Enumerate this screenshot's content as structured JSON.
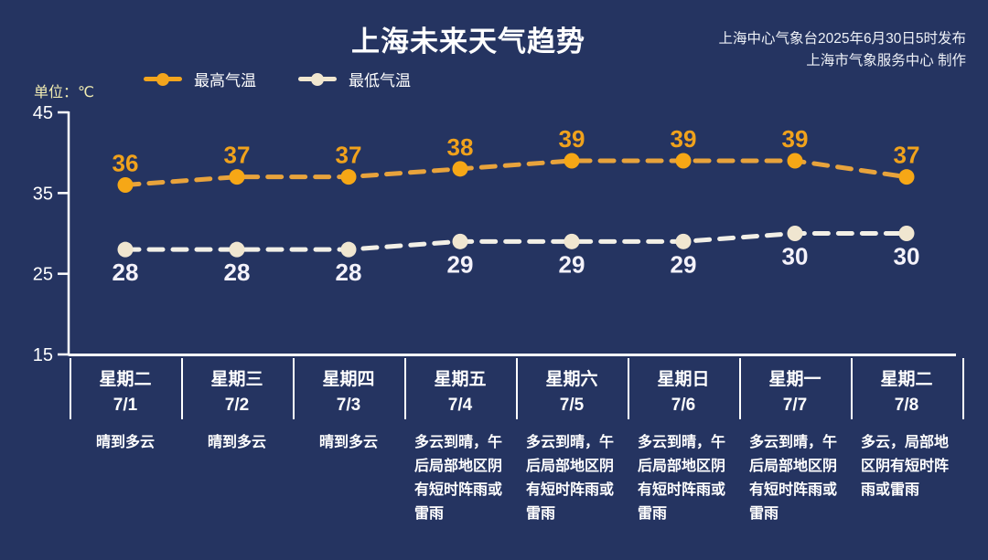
{
  "title": "上海未来天气趋势",
  "publisher": {
    "line1": "上海中心气象台2025年6月30日5时发布",
    "line2": "上海市气象服务中心 制作"
  },
  "unit_label": "单位：℃",
  "legend": [
    {
      "label": "最高气温",
      "color": "#f3a51d"
    },
    {
      "label": "最低气温",
      "color": "#f1e7d0"
    }
  ],
  "colors": {
    "background": "#253461",
    "axis": "#ffffff",
    "high_accent": "#f3a51d",
    "low_accent": "#f1e7d0",
    "unit_text": "#f2edb2"
  },
  "chart_data": {
    "type": "line",
    "title": "上海未来天气趋势",
    "unit": "℃",
    "line_style": "dashed",
    "grid": false,
    "legend_position": "top",
    "ylim": [
      15,
      45
    ],
    "yticks": [
      45,
      35,
      25,
      15
    ],
    "categories": [
      {
        "weekday": "星期二",
        "date": "7/1",
        "weather": "晴到多云"
      },
      {
        "weekday": "星期三",
        "date": "7/2",
        "weather": "晴到多云"
      },
      {
        "weekday": "星期四",
        "date": "7/3",
        "weather": "晴到多云"
      },
      {
        "weekday": "星期五",
        "date": "7/4",
        "weather": "多云到晴，午后局部地区阴有短时阵雨或雷雨"
      },
      {
        "weekday": "星期六",
        "date": "7/5",
        "weather": "多云到晴，午后局部地区阴有短时阵雨或雷雨"
      },
      {
        "weekday": "星期日",
        "date": "7/6",
        "weather": "多云到晴，午后局部地区阴有短时阵雨或雷雨"
      },
      {
        "weekday": "星期一",
        "date": "7/7",
        "weather": "多云到晴，午后局部地区阴有短时阵雨或雷雨"
      },
      {
        "weekday": "星期二",
        "date": "7/8",
        "weather": "多云，局部地区阴有短时阵雨或雷雨"
      }
    ],
    "series": [
      {
        "name": "最高气温",
        "values": [
          36,
          37,
          37,
          38,
          39,
          39,
          39,
          37
        ],
        "line_color": "#e8a33c",
        "dot_color": "#f6a716",
        "label_color": "#f0a21c"
      },
      {
        "name": "最低气温",
        "values": [
          28,
          28,
          28,
          29,
          29,
          29,
          30,
          30
        ],
        "line_color": "#f2efe6",
        "dot_color": "#f0e6d0",
        "label_color": "#f4f2fa"
      }
    ]
  }
}
